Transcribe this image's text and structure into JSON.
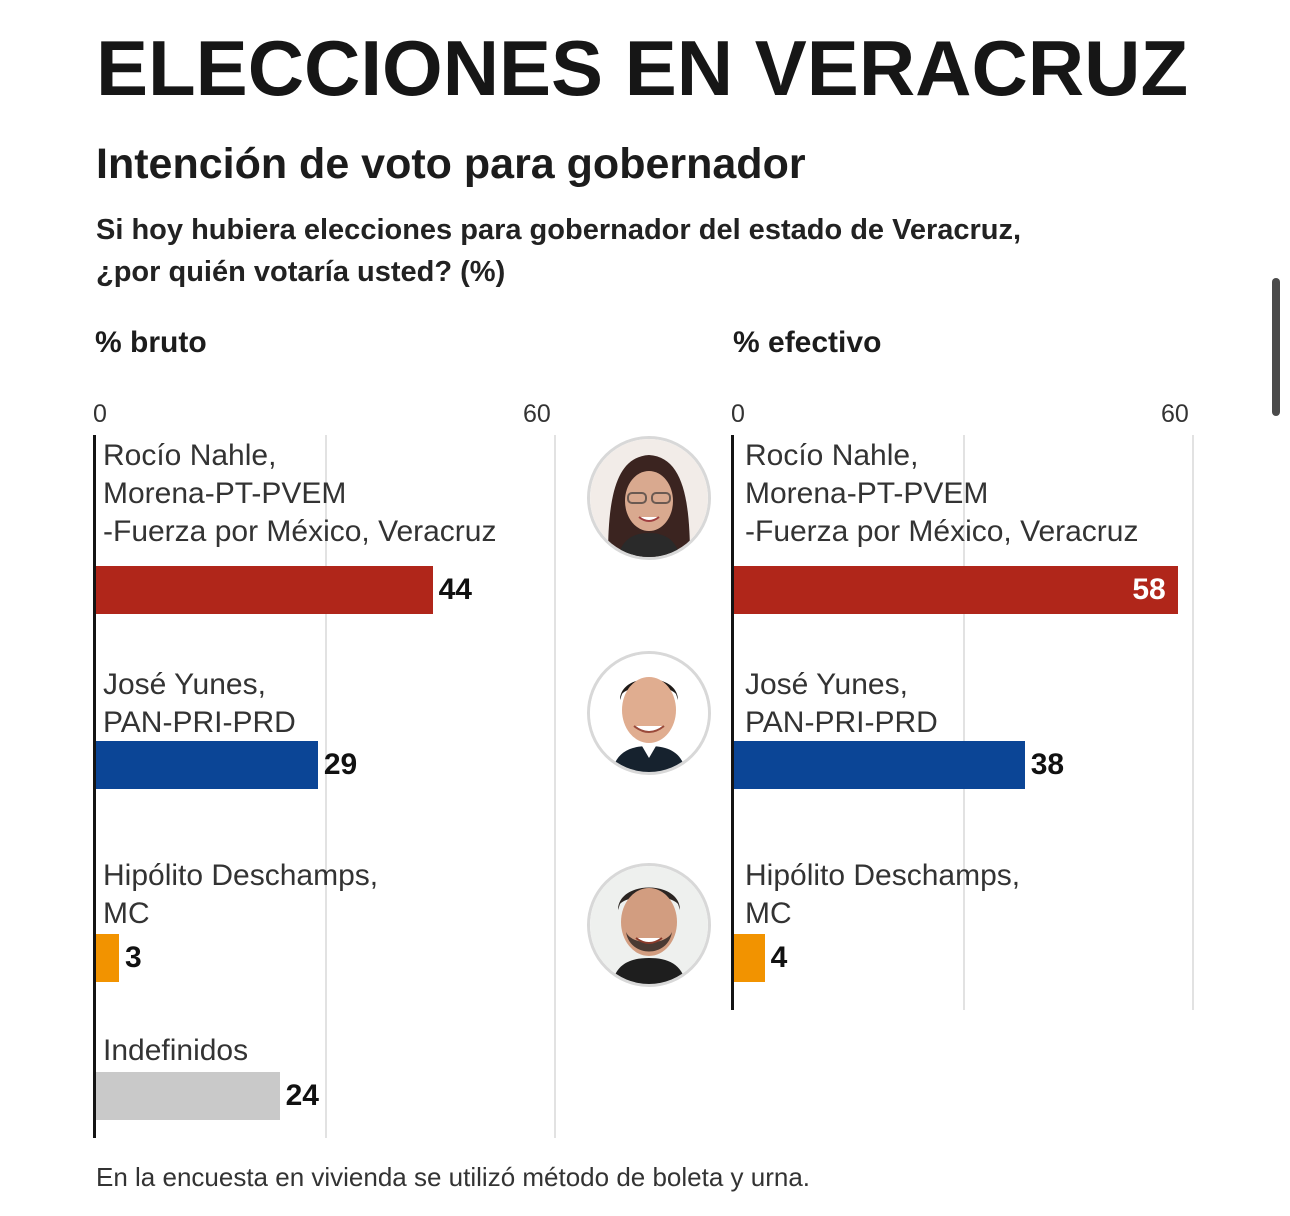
{
  "title": "ELECCIONES EN VERACRUZ",
  "subtitle": "Intención de voto para gobernador",
  "question": {
    "line1": "Si hoy hubiera elecciones para gobernador del estado de Veracruz,",
    "line2": "¿por quién votaría usted?  (%)"
  },
  "footnote": "En la encuesta en vivienda se utilizó método de boleta y urna.",
  "colors": {
    "morena": "#b0261a",
    "pan": "#0b4596",
    "mc": "#f29300",
    "indefinidos": "#c9c9c9"
  },
  "portraits": [
    {
      "icon": "woman-portrait-icon"
    },
    {
      "icon": "man-portrait-icon"
    },
    {
      "icon": "man-portrait-icon"
    }
  ],
  "chart_data": [
    {
      "type": "bar",
      "title": "% bruto",
      "xlim": [
        0,
        60
      ],
      "tick_labels": [
        "0",
        "60"
      ],
      "grid": true,
      "categories": [
        [
          "Rocío Nahle,",
          "Morena-PT-PVEM",
          "-Fuerza por México, Veracruz"
        ],
        [
          "José Yunes,",
          "PAN-PRI-PRD"
        ],
        [
          "Hipólito Deschamps,",
          "MC"
        ],
        [
          "Indefinidos"
        ]
      ],
      "values": [
        44,
        29,
        3,
        24
      ],
      "colors": [
        "#b0261a",
        "#0b4596",
        "#f29300",
        "#c9c9c9"
      ]
    },
    {
      "type": "bar",
      "title": "% efectivo",
      "xlim": [
        0,
        60
      ],
      "tick_labels": [
        "0",
        "60"
      ],
      "grid": true,
      "categories": [
        [
          "Rocío Nahle,",
          "Morena-PT-PVEM",
          "-Fuerza por México, Veracruz"
        ],
        [
          "José Yunes,",
          "PAN-PRI-PRD"
        ],
        [
          "Hipólito Deschamps,",
          "MC"
        ]
      ],
      "values": [
        58,
        38,
        4
      ],
      "colors": [
        "#b0261a",
        "#0b4596",
        "#f29300"
      ]
    }
  ]
}
